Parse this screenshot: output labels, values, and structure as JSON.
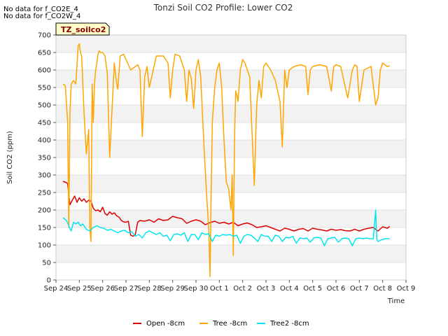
{
  "notes": [
    "No data for f_CO2E_4",
    "No data for f_CO2W_4"
  ],
  "site_badge": "TZ_soilco2",
  "chart_data": {
    "type": "line",
    "title": "Tonzi Soil CO2 Profile: Lower CO2",
    "xlabel": "Time",
    "ylabel": "Soil CO2 (ppm)",
    "xlim": [
      0,
      15
    ],
    "ylim": [
      0,
      700
    ],
    "yticks": [
      0,
      50,
      100,
      150,
      200,
      250,
      300,
      350,
      400,
      450,
      500,
      550,
      600,
      650,
      700
    ],
    "xtick_labels": [
      "Sep 24",
      "Sep 25",
      "Sep 26",
      "Sep 27",
      "Sep 28",
      "Sep 29",
      "Sep 30",
      "Oct 1",
      "Oct 2",
      "Oct 3",
      "Oct 4",
      "Oct 5",
      "Oct 6",
      "Oct 7",
      "Oct 8",
      "Oct 9"
    ],
    "series": [
      {
        "name": "Open -8cm",
        "color": "#dd0000",
        "x": [
          0.3,
          0.45,
          0.5,
          0.6,
          0.7,
          0.8,
          0.9,
          1.0,
          1.1,
          1.2,
          1.3,
          1.4,
          1.5,
          1.6,
          1.7,
          1.8,
          1.9,
          2.0,
          2.1,
          2.2,
          2.3,
          2.4,
          2.5,
          2.6,
          2.7,
          2.8,
          2.9,
          3.0,
          3.1,
          3.2,
          3.3,
          3.4,
          3.5,
          3.6,
          3.8,
          4.0,
          4.2,
          4.4,
          4.6,
          4.8,
          5.0,
          5.2,
          5.4,
          5.6,
          5.8,
          6.0,
          6.2,
          6.4,
          6.6,
          6.8,
          7.0,
          7.2,
          7.4,
          7.6,
          7.8,
          8.0,
          8.2,
          8.4,
          8.6,
          8.8,
          9.0,
          9.2,
          9.4,
          9.6,
          9.8,
          10.0,
          10.2,
          10.4,
          10.6,
          10.8,
          11.0,
          11.2,
          11.4,
          11.6,
          11.8,
          12.0,
          12.2,
          12.4,
          12.6,
          12.8,
          13.0,
          13.2,
          13.4,
          13.6,
          13.8,
          14.0,
          14.2,
          14.3
        ],
        "y": [
          282,
          278,
          275,
          215,
          228,
          240,
          222,
          235,
          225,
          232,
          222,
          228,
          225,
          205,
          198,
          200,
          195,
          208,
          190,
          185,
          195,
          188,
          192,
          183,
          180,
          170,
          166,
          165,
          168,
          128,
          125,
          130,
          165,
          170,
          168,
          172,
          165,
          175,
          170,
          172,
          182,
          178,
          175,
          162,
          168,
          172,
          168,
          158,
          164,
          168,
          162,
          165,
          160,
          165,
          155,
          160,
          163,
          158,
          150,
          152,
          155,
          150,
          145,
          140,
          148,
          145,
          140,
          145,
          147,
          140,
          148,
          145,
          143,
          140,
          145,
          142,
          144,
          141,
          140,
          145,
          140,
          145,
          148,
          150,
          140,
          152,
          148,
          153
        ]
      },
      {
        "name": "Tree -8cm",
        "color": "#ffa500",
        "x": [
          0.3,
          0.4,
          0.5,
          0.55,
          0.6,
          0.65,
          0.75,
          0.85,
          0.95,
          1.0,
          1.05,
          1.1,
          1.2,
          1.3,
          1.4,
          1.45,
          1.5,
          1.55,
          1.6,
          1.65,
          1.7,
          1.75,
          1.8,
          1.85,
          1.9,
          2.0,
          2.1,
          2.2,
          2.3,
          2.5,
          2.6,
          2.65,
          2.75,
          2.9,
          3.0,
          3.2,
          3.5,
          3.6,
          3.7,
          3.8,
          3.9,
          4.0,
          4.1,
          4.3,
          4.6,
          4.8,
          4.9,
          5.0,
          5.1,
          5.3,
          5.5,
          5.6,
          5.7,
          5.8,
          5.9,
          6.0,
          6.1,
          6.2,
          6.35,
          6.45,
          6.55,
          6.6,
          6.65,
          6.7,
          6.8,
          6.9,
          7.0,
          7.1,
          7.2,
          7.3,
          7.4,
          7.5,
          7.55,
          7.6,
          7.65,
          7.7,
          7.75,
          7.8,
          7.9,
          8.0,
          8.1,
          8.2,
          8.3,
          8.5,
          8.6,
          8.7,
          8.8,
          8.9,
          9.0,
          9.2,
          9.4,
          9.6,
          9.7,
          9.8,
          9.9,
          10.0,
          10.2,
          10.5,
          10.7,
          10.8,
          10.9,
          11.0,
          11.3,
          11.6,
          11.8,
          11.9,
          12.0,
          12.2,
          12.5,
          12.7,
          12.8,
          12.9,
          13.0,
          13.2,
          13.5,
          13.7,
          13.8,
          13.9,
          14.0,
          14.2,
          14.3
        ],
        "y": [
          560,
          555,
          450,
          150,
          480,
          560,
          570,
          560,
          670,
          675,
          650,
          640,
          480,
          360,
          430,
          150,
          110,
          560,
          450,
          560,
          600,
          620,
          645,
          655,
          650,
          650,
          640,
          590,
          350,
          620,
          560,
          545,
          640,
          645,
          630,
          600,
          615,
          600,
          410,
          580,
          610,
          550,
          580,
          640,
          640,
          620,
          520,
          600,
          645,
          640,
          600,
          510,
          600,
          575,
          490,
          600,
          630,
          580,
          370,
          250,
          140,
          10,
          250,
          450,
          550,
          600,
          620,
          550,
          400,
          280,
          260,
          200,
          300,
          70,
          400,
          540,
          530,
          510,
          600,
          630,
          620,
          600,
          580,
          270,
          500,
          570,
          520,
          610,
          620,
          600,
          570,
          510,
          380,
          600,
          550,
          600,
          610,
          615,
          610,
          530,
          600,
          610,
          615,
          610,
          540,
          610,
          615,
          610,
          520,
          600,
          615,
          610,
          510,
          600,
          610,
          500,
          520,
          600,
          620,
          610,
          612
        ]
      },
      {
        "name": "Tree2 -8cm",
        "color": "#00e5ee",
        "x": [
          0.3,
          0.45,
          0.55,
          0.65,
          0.75,
          0.85,
          0.95,
          1.05,
          1.15,
          1.3,
          1.45,
          1.6,
          1.75,
          1.9,
          2.05,
          2.2,
          2.35,
          2.5,
          2.65,
          2.8,
          2.95,
          3.1,
          3.25,
          3.4,
          3.55,
          3.7,
          3.85,
          4.0,
          4.15,
          4.3,
          4.45,
          4.6,
          4.75,
          4.9,
          5.05,
          5.2,
          5.35,
          5.5,
          5.65,
          5.8,
          5.95,
          6.1,
          6.25,
          6.4,
          6.55,
          6.7,
          6.85,
          7.0,
          7.15,
          7.3,
          7.45,
          7.6,
          7.75,
          7.9,
          8.05,
          8.2,
          8.35,
          8.5,
          8.65,
          8.8,
          8.95,
          9.1,
          9.25,
          9.4,
          9.55,
          9.7,
          9.85,
          10.0,
          10.15,
          10.3,
          10.45,
          10.6,
          10.75,
          10.9,
          11.05,
          11.2,
          11.35,
          11.5,
          11.65,
          11.8,
          11.95,
          12.1,
          12.25,
          12.4,
          12.55,
          12.7,
          12.85,
          13.0,
          13.15,
          13.3,
          13.45,
          13.6,
          13.7,
          13.75,
          13.8,
          13.95,
          14.1,
          14.3
        ],
        "y": [
          178,
          170,
          155,
          140,
          165,
          160,
          165,
          155,
          160,
          145,
          140,
          150,
          155,
          150,
          148,
          142,
          145,
          140,
          135,
          140,
          142,
          135,
          138,
          125,
          130,
          120,
          135,
          140,
          135,
          130,
          135,
          125,
          128,
          112,
          130,
          132,
          128,
          135,
          110,
          130,
          130,
          115,
          135,
          130,
          132,
          110,
          128,
          125,
          130,
          128,
          130,
          125,
          128,
          105,
          125,
          130,
          128,
          120,
          110,
          130,
          125,
          125,
          110,
          128,
          125,
          110,
          122,
          120,
          125,
          105,
          120,
          118,
          120,
          108,
          120,
          122,
          120,
          98,
          118,
          120,
          122,
          108,
          118,
          120,
          118,
          98,
          118,
          120,
          118,
          120,
          118,
          118,
          200,
          115,
          110,
          115,
          118,
          118
        ]
      }
    ]
  }
}
